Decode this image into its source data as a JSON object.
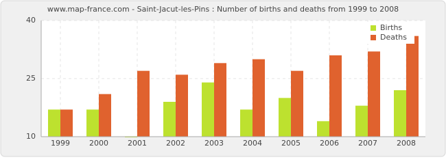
{
  "chart_data": {
    "type": "bar",
    "title": "www.map-france.com - Saint-Jacut-les-Pins : Number of births and deaths from 1999 to 2008",
    "categories": [
      "1999",
      "2000",
      "2001",
      "2002",
      "2003",
      "2004",
      "2005",
      "2006",
      "2007",
      "2008"
    ],
    "series": [
      {
        "name": "Births",
        "color": "#bde12f",
        "values": [
          17,
          17,
          10,
          19,
          24,
          17,
          20,
          14,
          18,
          22
        ]
      },
      {
        "name": "Deaths",
        "color": "#e0622e",
        "values": [
          17,
          21,
          27,
          26,
          29,
          30,
          27,
          31,
          32,
          36
        ]
      }
    ],
    "ylim": [
      10,
      40
    ],
    "yticks": [
      10,
      25,
      40
    ],
    "grid": true,
    "legend": "top-right"
  }
}
